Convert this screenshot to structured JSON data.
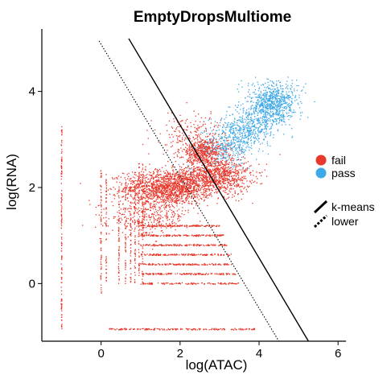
{
  "chart_data": {
    "type": "scatter",
    "title": "EmptyDropsMultiome",
    "xlabel": "log(ATAC)",
    "ylabel": "log(RNA)",
    "xlim": [
      -1.5,
      6.2
    ],
    "ylim": [
      -1.2,
      5.3
    ],
    "x_ticks": [
      {
        "value": 0,
        "label": "0"
      },
      {
        "value": 2,
        "label": "2"
      },
      {
        "value": 4,
        "label": "4"
      },
      {
        "value": 6,
        "label": "6"
      }
    ],
    "y_ticks": [
      {
        "value": 0,
        "label": "0"
      },
      {
        "value": 2,
        "label": "2"
      },
      {
        "value": 4,
        "label": "4"
      }
    ],
    "grid": false,
    "legend_placement": "right",
    "series": [
      {
        "name": "fail",
        "color": "#e8382b",
        "clusters": [
          {
            "cx": 1.7,
            "cy": 2.0,
            "sx": 0.55,
            "sy": 0.18,
            "n": 1400
          },
          {
            "cx": 2.9,
            "cy": 2.25,
            "sx": 0.45,
            "sy": 0.2,
            "n": 1000
          },
          {
            "cx": 2.6,
            "cy": 2.75,
            "sx": 0.3,
            "sy": 0.12,
            "n": 500
          },
          {
            "cx": 1.2,
            "cy": 1.4,
            "sx": 0.5,
            "sy": 0.2,
            "n": 350
          },
          {
            "cx": 2.3,
            "cy": 3.1,
            "sx": 0.45,
            "sy": 0.25,
            "n": 200
          }
        ],
        "bands": [
          {
            "y": 1.2,
            "x": [
              1.0,
              3.0
            ],
            "n": 140
          },
          {
            "y": 1.0,
            "x": [
              1.0,
              3.1
            ],
            "n": 140
          },
          {
            "y": 0.8,
            "x": [
              1.0,
              3.2
            ],
            "n": 140
          },
          {
            "y": 0.6,
            "x": [
              1.0,
              3.3
            ],
            "n": 140
          },
          {
            "y": 0.4,
            "x": [
              1.0,
              3.3
            ],
            "n": 140
          },
          {
            "y": 0.2,
            "x": [
              1.0,
              3.4
            ],
            "n": 140
          },
          {
            "y": 0.0,
            "x": [
              1.0,
              3.5
            ],
            "n": 120
          },
          {
            "y": -0.95,
            "x": [
              0.2,
              3.9
            ],
            "n": 180
          }
        ],
        "columns": [
          {
            "x": -1.0,
            "y": [
              -0.95,
              3.3
            ],
            "n": 140
          },
          {
            "x": 0.0,
            "y": [
              -0.2,
              2.4
            ],
            "n": 70
          },
          {
            "x": 0.13,
            "y": [
              0.0,
              2.3
            ],
            "n": 55
          },
          {
            "x": 0.45,
            "y": [
              0.0,
              2.0
            ],
            "n": 55
          },
          {
            "x": 0.62,
            "y": [
              0.0,
              2.2
            ],
            "n": 55
          },
          {
            "x": 0.75,
            "y": [
              0.0,
              2.3
            ],
            "n": 55
          },
          {
            "x": 0.86,
            "y": [
              0.0,
              2.4
            ],
            "n": 55
          },
          {
            "x": 0.96,
            "y": [
              0.0,
              2.5
            ],
            "n": 55
          },
          {
            "x": 1.05,
            "y": [
              0.0,
              2.5
            ],
            "n": 55
          }
        ]
      },
      {
        "name": "pass",
        "color": "#3fa9e8",
        "clusters": [
          {
            "cx": 4.35,
            "cy": 3.75,
            "sx": 0.32,
            "sy": 0.22,
            "n": 800
          },
          {
            "cx": 3.75,
            "cy": 3.2,
            "sx": 0.3,
            "sy": 0.22,
            "n": 400
          },
          {
            "cx": 3.2,
            "cy": 2.9,
            "sx": 0.3,
            "sy": 0.25,
            "n": 300
          },
          {
            "cx": 2.2,
            "cy": 2.3,
            "sx": 0.3,
            "sy": 0.12,
            "n": 10
          }
        ]
      }
    ],
    "lines": [
      {
        "name": "k-means",
        "style": "solid",
        "points": [
          [
            0.7,
            5.1
          ],
          [
            5.25,
            -1.2
          ]
        ]
      },
      {
        "name": "lower",
        "style": "dotted",
        "points": [
          [
            -0.05,
            5.05
          ],
          [
            4.5,
            -1.2
          ]
        ]
      }
    ]
  }
}
